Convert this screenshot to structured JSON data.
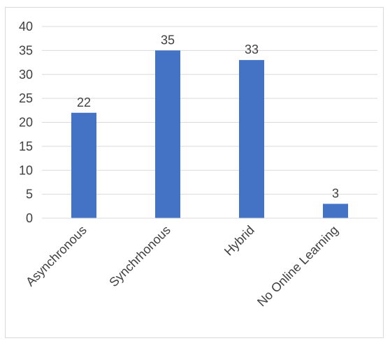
{
  "chart_data": {
    "type": "bar",
    "title": "",
    "xlabel": "",
    "ylabel": "",
    "categories": [
      "Asynchronous",
      "Synchrhonous",
      "Hybrid",
      "No Online Learning"
    ],
    "values": [
      22,
      35,
      33,
      3
    ],
    "ylim": [
      0,
      40
    ],
    "yticks": [
      0,
      5,
      10,
      15,
      20,
      25,
      30,
      35,
      40
    ],
    "grid": true,
    "legend": "none",
    "data_labels": true,
    "bar_color": "#4472C4"
  }
}
